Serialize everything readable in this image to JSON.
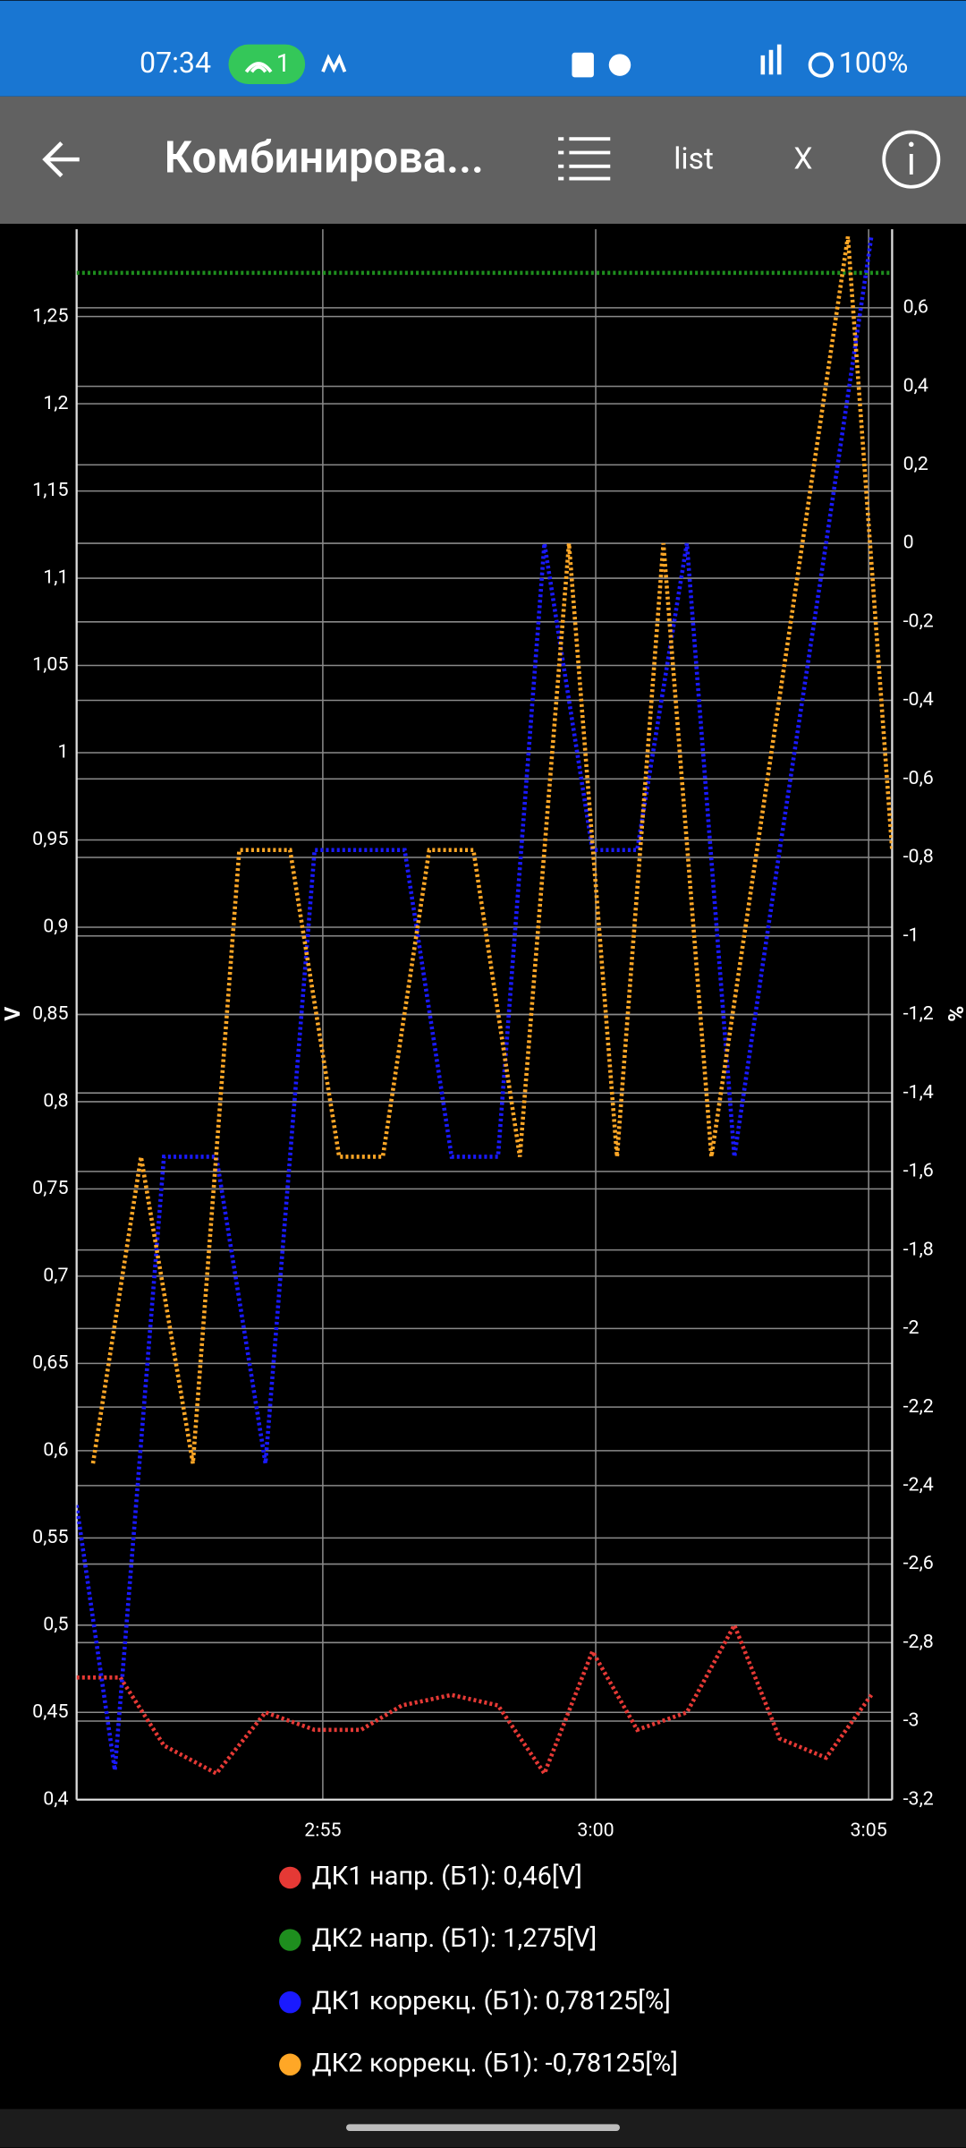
{
  "status_bar": {
    "time": "07:34",
    "hotspot_badge": "1",
    "battery": "100%"
  },
  "app_bar": {
    "title": "Комбинирова...",
    "list_button": "list",
    "close_button": "X"
  },
  "chart_data": {
    "type": "line",
    "ylabel": "V",
    "y2label": "%",
    "xlim": [
      170.49,
      185.43
    ],
    "xticks": [
      {
        "value": 175,
        "label": "2:55"
      },
      {
        "value": 180,
        "label": "3:00"
      },
      {
        "value": 185,
        "label": "3:05"
      }
    ],
    "ylim": [
      0.4,
      1.3
    ],
    "yticks": [
      {
        "value": 0.4,
        "label": "0,4"
      },
      {
        "value": 0.45,
        "label": "0,45"
      },
      {
        "value": 0.5,
        "label": "0,5"
      },
      {
        "value": 0.55,
        "label": "0,55"
      },
      {
        "value": 0.6,
        "label": "0,6"
      },
      {
        "value": 0.65,
        "label": "0,65"
      },
      {
        "value": 0.7,
        "label": "0,7"
      },
      {
        "value": 0.75,
        "label": "0,75"
      },
      {
        "value": 0.8,
        "label": "0,8"
      },
      {
        "value": 0.85,
        "label": "0,85"
      },
      {
        "value": 0.9,
        "label": "0,9"
      },
      {
        "value": 0.95,
        "label": "0,95"
      },
      1,
      {
        "value": 1.05,
        "label": "1,05"
      },
      {
        "value": 1.1,
        "label": "1,1"
      },
      {
        "value": 1.15,
        "label": "1,15"
      },
      {
        "value": 1.2,
        "label": "1,2"
      },
      {
        "value": 1.25,
        "label": "1,25"
      }
    ],
    "y2lim": [
      -3.2,
      0.8
    ],
    "y2ticks": [
      {
        "value": -3.2,
        "label": "-3,2"
      },
      -3,
      {
        "value": -2.8,
        "label": "-2,8"
      },
      {
        "value": -2.6,
        "label": "-2,6"
      },
      {
        "value": -2.4,
        "label": "-2,4"
      },
      {
        "value": -2.2,
        "label": "-2,2"
      },
      -2,
      {
        "value": -1.8,
        "label": "-1,8"
      },
      {
        "value": -1.6,
        "label": "-1,6"
      },
      {
        "value": -1.4,
        "label": "-1,4"
      },
      {
        "value": -1.2,
        "label": "-1,2"
      },
      -1,
      {
        "value": -0.8,
        "label": "-0,8"
      },
      {
        "value": -0.6,
        "label": "-0,6"
      },
      {
        "value": -0.4,
        "label": "-0,4"
      },
      {
        "value": -0.2,
        "label": "-0,2"
      },
      0,
      {
        "value": 0.2,
        "label": "0,2"
      },
      {
        "value": 0.4,
        "label": "0,4"
      },
      {
        "value": 0.6,
        "label": "0,6"
      }
    ],
    "grid": true,
    "series": [
      {
        "name": "ДК1 напр. (Б1): 0,46[V]",
        "color": "#e53935",
        "axis": "y",
        "x": [
          170.49,
          171.29,
          172.09,
          173.05,
          173.95,
          174.85,
          175.7,
          176.45,
          177.36,
          178.21,
          179.06,
          179.94,
          180.76,
          181.67,
          182.54,
          183.37,
          184.22,
          185.05
        ],
        "values": [
          0.47,
          0.47,
          0.431,
          0.415,
          0.45,
          0.44,
          0.44,
          0.454,
          0.46,
          0.454,
          0.415,
          0.485,
          0.44,
          0.45,
          0.5,
          0.435,
          0.424,
          0.46
        ]
      },
      {
        "name": "ДК2 напр. (Б1): 1,275[V]",
        "color": "#1e8e1e",
        "axis": "y",
        "x": [
          170.49,
          185.43
        ],
        "values": [
          1.275,
          1.275
        ]
      },
      {
        "name": "ДК1 коррекц. (Б1): 0,78125[%]",
        "color": "#1a1aff",
        "axis": "y2",
        "x": [
          170.49,
          171.19,
          172.09,
          173.05,
          173.95,
          174.85,
          176.5,
          177.36,
          178.21,
          179.06,
          179.94,
          180.76,
          181.67,
          182.54,
          183.37,
          184.22,
          185.05
        ],
        "values": [
          -2.45,
          -3.125,
          -1.5625,
          -1.5625,
          -2.34375,
          -0.78125,
          -0.78125,
          -1.5625,
          -1.5625,
          0,
          -0.78125,
          -0.78125,
          0,
          -1.5625,
          -0.78125,
          0,
          0.78125
        ]
      },
      {
        "name": "ДК2 коррекц. (Б1): -0,78125[%]",
        "color": "#ffa726",
        "axis": "y2",
        "x": [
          170.79,
          171.67,
          172.62,
          173.47,
          174.4,
          175.3,
          176.1,
          176.95,
          177.76,
          178.61,
          179.51,
          180.39,
          181.24,
          182.12,
          184.62,
          185.43
        ],
        "values": [
          -2.34375,
          -1.5625,
          -2.34375,
          -0.78125,
          -0.78125,
          -1.5625,
          -1.5625,
          -0.78125,
          -0.78125,
          -1.5625,
          0,
          -1.5625,
          0,
          -1.5625,
          0.78125,
          -0.78125
        ]
      }
    ]
  }
}
